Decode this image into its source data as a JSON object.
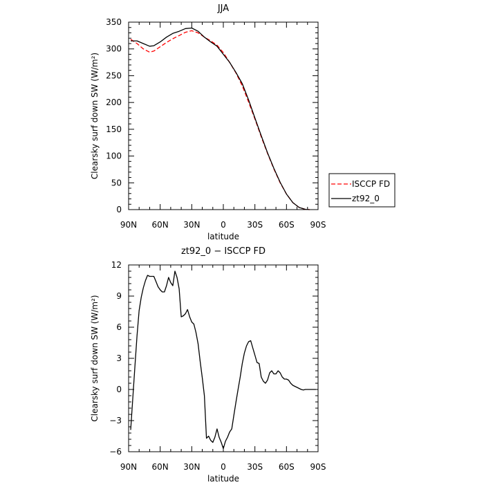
{
  "chart_data": [
    {
      "type": "line",
      "title": "JJA",
      "xlabel": "latitude",
      "ylabel": "Clearsky surf down SW (W/m²)",
      "xlim": [
        90,
        -90
      ],
      "ylim": [
        0,
        350
      ],
      "x_ticks": [
        90,
        60,
        30,
        0,
        -30,
        -60,
        -90
      ],
      "x_tick_labels": [
        "90N",
        "60N",
        "30N",
        "0",
        "30S",
        "60S",
        "90S"
      ],
      "y_ticks": [
        0,
        50,
        100,
        150,
        200,
        250,
        300,
        350
      ],
      "y_tick_labels": [
        "0",
        "50",
        "100",
        "150",
        "200",
        "250",
        "300",
        "350"
      ],
      "legend": "right",
      "series": [
        {
          "name": "ISCCP FD",
          "color": "#ff0000",
          "style": "dashed",
          "x": [
            88,
            82,
            76,
            70,
            66,
            60,
            54,
            48,
            42,
            36,
            30,
            24,
            18,
            12,
            6,
            0,
            -6,
            -12,
            -18,
            -24,
            -30,
            -36,
            -42,
            -48,
            -54,
            -60,
            -66,
            -72,
            -78,
            -82
          ],
          "y": [
            318,
            310,
            300,
            294,
            296,
            304,
            312,
            319,
            325,
            331,
            334,
            330,
            322,
            315,
            307,
            293,
            275,
            255,
            231,
            201,
            169,
            136,
            105,
            76,
            50,
            29,
            13,
            4,
            0.5,
            0
          ]
        },
        {
          "name": "zt92_0",
          "color": "#000000",
          "style": "solid",
          "x": [
            88,
            82,
            76,
            70,
            66,
            60,
            54,
            48,
            42,
            36,
            30,
            24,
            18,
            12,
            6,
            0,
            -6,
            -12,
            -18,
            -24,
            -30,
            -36,
            -42,
            -48,
            -54,
            -60,
            -66,
            -72,
            -78,
            -82
          ],
          "y": [
            315,
            315,
            310,
            305,
            306,
            313,
            322,
            329,
            333,
            338,
            339,
            333,
            322,
            313,
            305,
            290,
            275,
            256,
            235,
            205,
            171,
            138,
            106,
            77,
            51,
            29,
            13,
            4,
            0.5,
            0
          ]
        }
      ]
    },
    {
      "type": "line",
      "title": "zt92_0 − ISCCP FD",
      "xlabel": "latitude",
      "ylabel": "Clearsky surf down SW (W/m²)",
      "xlim": [
        90,
        -90
      ],
      "ylim": [
        -6,
        12
      ],
      "x_ticks": [
        90,
        60,
        30,
        0,
        -30,
        -60,
        -90
      ],
      "x_tick_labels": [
        "90N",
        "60N",
        "30N",
        "0",
        "30S",
        "60S",
        "90S"
      ],
      "y_ticks": [
        -6,
        -3,
        0,
        3,
        6,
        9,
        12
      ],
      "y_tick_labels": [
        "−6",
        "−3",
        "0",
        "3",
        "6",
        "9",
        "12"
      ],
      "series": [
        {
          "color": "#000000",
          "style": "solid",
          "x": [
            88,
            86,
            84,
            82,
            80,
            78,
            76,
            74,
            72,
            70,
            68,
            66,
            64,
            62,
            60,
            58,
            56,
            54,
            52,
            50,
            48,
            46,
            44,
            42,
            40,
            38,
            36,
            34,
            32,
            30,
            28,
            26,
            24,
            22,
            20,
            18,
            16,
            14,
            12,
            10,
            8,
            6,
            4,
            2,
            0,
            -2,
            -4,
            -6,
            -8,
            -10,
            -12,
            -14,
            -16,
            -18,
            -20,
            -22,
            -24,
            -26,
            -28,
            -30,
            -32,
            -34,
            -36,
            -38,
            -40,
            -42,
            -44,
            -46,
            -48,
            -50,
            -52,
            -54,
            -56,
            -58,
            -60,
            -62,
            -64,
            -66,
            -68,
            -70,
            -72,
            -74,
            -76,
            -78,
            -80,
            -82,
            -84,
            -86,
            -88
          ],
          "y": [
            -3.9,
            -0.8,
            2.2,
            5.2,
            7.6,
            8.9,
            9.8,
            10.5,
            11.0,
            10.9,
            10.9,
            10.9,
            10.4,
            9.9,
            9.6,
            9.4,
            9.4,
            10.0,
            10.8,
            10.3,
            10.0,
            11.4,
            10.8,
            9.7,
            7.0,
            7.1,
            7.3,
            7.7,
            7.0,
            6.5,
            6.3,
            5.5,
            4.4,
            2.7,
            1.1,
            -0.6,
            -4.7,
            -4.5,
            -4.9,
            -5.1,
            -4.6,
            -3.8,
            -4.6,
            -5.1,
            -5.7,
            -5.0,
            -4.6,
            -4.1,
            -3.8,
            -2.5,
            -1.2,
            0.0,
            1.2,
            2.5,
            3.5,
            4.2,
            4.6,
            4.7,
            4.0,
            3.3,
            2.6,
            2.5,
            1.2,
            0.8,
            0.6,
            0.9,
            1.6,
            1.8,
            1.5,
            1.5,
            1.8,
            1.6,
            1.2,
            1.0,
            1.0,
            0.9,
            0.6,
            0.4,
            0.3,
            0.2,
            0.1,
            0.0,
            -0.05,
            0.0,
            0.0,
            0.0,
            0.0,
            0.0,
            0.0
          ]
        }
      ]
    }
  ]
}
